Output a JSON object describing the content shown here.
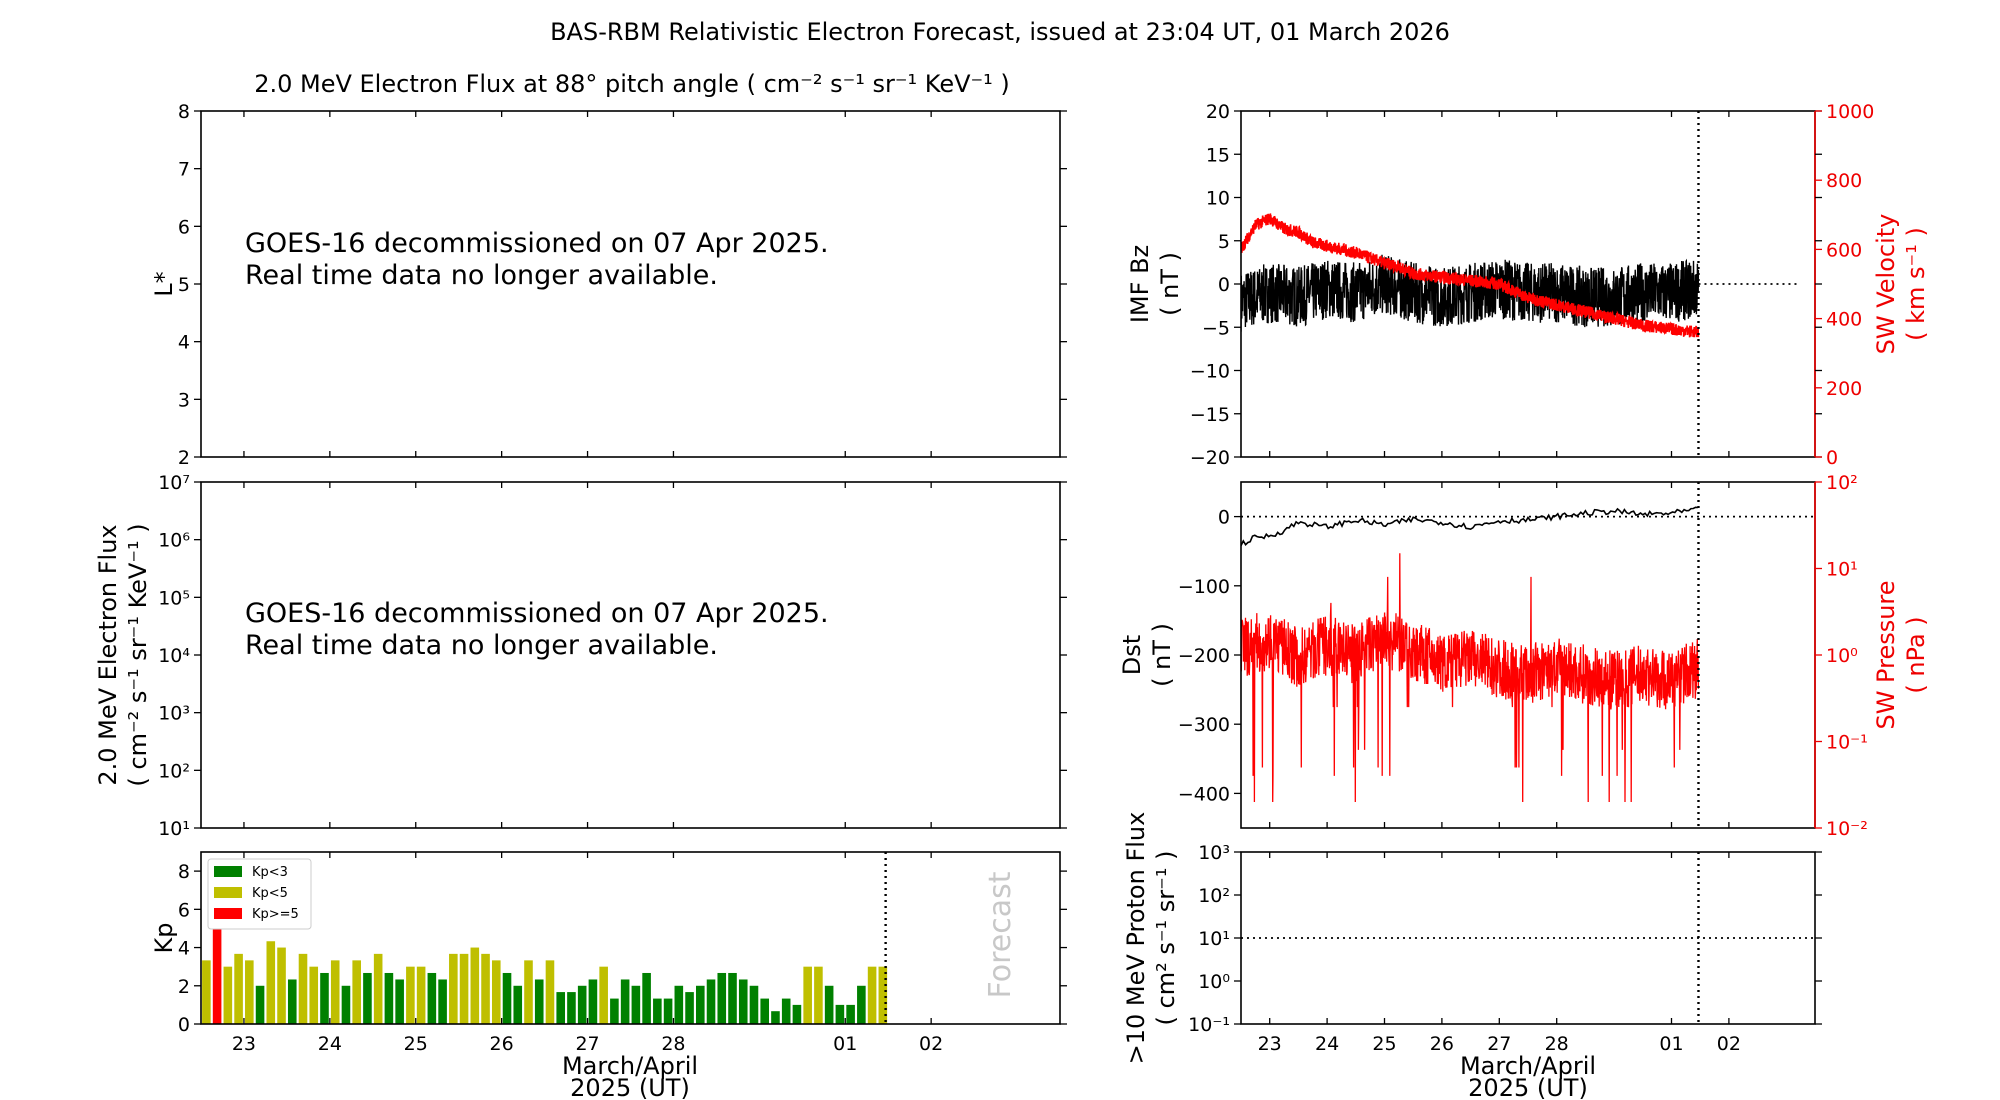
{
  "figure": {
    "title": "BAS-RBM Relativistic Electron Forecast, issued at 23:04 UT, 01 March 2026"
  },
  "chart_data": [
    {
      "id": "lstar_flux",
      "type": "heatmap",
      "title": "2.0 MeV Electron Flux at 88° pitch angle ( cm⁻² s⁻¹ sr⁻¹ KeV⁻¹ )",
      "ylabel": "L*",
      "ylim": [
        2,
        8
      ],
      "yticks": [
        "2",
        "3",
        "4",
        "5",
        "6",
        "7",
        "8"
      ],
      "notice": [
        "GOES-16 decommissioned on 07 Apr 2025.",
        "Real time data no longer available."
      ]
    },
    {
      "id": "electron_flux",
      "type": "line",
      "ylabel_lines": [
        "2.0 MeV Electron Flux",
        "( cm⁻² s⁻¹ sr⁻¹ KeV⁻¹ )"
      ],
      "yscale": "log",
      "ylim": [
        10,
        10000000
      ],
      "yticks": [
        "10¹",
        "10²",
        "10³",
        "10⁴",
        "10⁵",
        "10⁶",
        "10⁷"
      ],
      "notice": [
        "GOES-16 decommissioned on 07 Apr 2025.",
        "Real time data no longer available."
      ]
    },
    {
      "id": "kp",
      "type": "bar",
      "ylabel": "Kp",
      "ylim": [
        0,
        9
      ],
      "yticks": [
        "0",
        "2",
        "4",
        "6",
        "8"
      ],
      "xticks": [
        "23",
        "24",
        "25",
        "26",
        "27",
        "28",
        "01",
        "02"
      ],
      "xlabel_lines": [
        "March/April",
        "2025 (UT)"
      ],
      "x_start_day": 22.5,
      "bar_hours": 3,
      "now_day": 30.47,
      "forecast_label": "Forecast",
      "legend": {
        "placement": "top-left",
        "entries": [
          {
            "label": "Kp<3",
            "color": "#008000"
          },
          {
            "label": "Kp<5",
            "color": "#bfbf00"
          },
          {
            "label": "Kp>=5",
            "color": "#ff0000"
          }
        ]
      },
      "values": [
        3.33,
        5.0,
        3.0,
        3.67,
        3.33,
        2.0,
        4.33,
        4.0,
        2.33,
        3.67,
        3.0,
        2.67,
        3.33,
        2.0,
        3.33,
        2.67,
        3.67,
        2.67,
        2.33,
        3.0,
        3.0,
        2.67,
        2.33,
        3.67,
        3.67,
        4.0,
        3.67,
        3.33,
        2.67,
        2.0,
        3.33,
        2.33,
        3.33,
        1.67,
        1.67,
        2.0,
        2.33,
        3.0,
        1.33,
        2.33,
        2.0,
        2.67,
        1.33,
        1.33,
        2.0,
        1.67,
        2.0,
        2.33,
        2.67,
        2.67,
        2.33,
        2.0,
        1.33,
        0.67,
        1.33,
        1.0,
        3.0,
        3.0,
        2.0,
        1.0,
        1.0,
        2.0,
        3.0,
        3.0
      ]
    },
    {
      "id": "imf_sw",
      "type": "line",
      "ylabel_lines": [
        "IMF Bz",
        "( nT )"
      ],
      "ylim": [
        -20,
        20
      ],
      "yticks": [
        "−20",
        "−15",
        "−10",
        "−5",
        "0",
        "5",
        "10",
        "15",
        "20"
      ],
      "y2label_lines": [
        "SW Velocity",
        "( km s⁻¹ )"
      ],
      "y2lim": [
        0,
        1000
      ],
      "y2ticks": [
        "0",
        "200",
        "400",
        "600",
        "800",
        "1000"
      ],
      "series": [
        {
          "axis": "left",
          "color": "#000000",
          "x": [
            22.5,
            23.0,
            23.5,
            24.0,
            24.5,
            25.0,
            25.5,
            26.0,
            26.5,
            27.0,
            27.5,
            28.0,
            28.5,
            29.0,
            29.5,
            30.0,
            30.47
          ],
          "y": [
            -2.0,
            -1.0,
            -1.5,
            -0.5,
            -1.0,
            0.0,
            -1.0,
            -1.5,
            -1.0,
            -0.5,
            -1.0,
            -1.0,
            -1.5,
            -1.5,
            -1.0,
            -1.0,
            -0.5
          ],
          "spread": 3.5
        },
        {
          "axis": "right",
          "color": "#ff0000",
          "x": [
            22.5,
            22.75,
            23.0,
            23.25,
            23.5,
            23.75,
            24.0,
            24.5,
            25.0,
            25.25,
            25.5,
            26.0,
            26.5,
            27.0,
            27.5,
            28.0,
            28.5,
            29.0,
            29.5,
            30.0,
            30.47
          ],
          "y": [
            600,
            670,
            690,
            660,
            650,
            620,
            610,
            590,
            560,
            550,
            530,
            520,
            510,
            500,
            460,
            440,
            420,
            400,
            380,
            370,
            360
          ],
          "spread": 18
        }
      ],
      "zero_line_to_day": 31.5,
      "now_day": 30.47
    },
    {
      "id": "dst_pressure",
      "type": "line",
      "ylabel_lines": [
        "Dst",
        "( nT )"
      ],
      "ylim": [
        -450,
        50
      ],
      "yticks": [
        "−400",
        "−300",
        "−200",
        "−100",
        "0"
      ],
      "y2label_lines": [
        "SW Pressure",
        "( nPa )"
      ],
      "y2scale": "log",
      "y2lim": [
        0.01,
        100
      ],
      "y2ticks": [
        "10⁻²",
        "10⁻¹",
        "10⁰",
        "10¹",
        "10²"
      ],
      "series": [
        {
          "axis": "left",
          "color": "#000000",
          "x": [
            22.5,
            22.75,
            23.0,
            23.25,
            23.5,
            24.0,
            24.5,
            25.0,
            25.5,
            26.0,
            26.5,
            27.0,
            27.5,
            28.0,
            28.5,
            29.0,
            29.5,
            30.0,
            30.47
          ],
          "y": [
            -40,
            -30,
            -28,
            -20,
            -8,
            -15,
            -5,
            -12,
            -4,
            -8,
            -15,
            -6,
            -5,
            0,
            5,
            8,
            3,
            5,
            10
          ]
        },
        {
          "axis": "right",
          "color": "#ff0000",
          "x": [
            22.5,
            23.0,
            23.5,
            24.0,
            24.5,
            25.0,
            25.5,
            26.0,
            26.5,
            27.0,
            27.5,
            28.0,
            28.5,
            29.0,
            29.5,
            30.0,
            30.47
          ],
          "y": [
            1.2,
            1.5,
            0.9,
            1.3,
            1.0,
            1.6,
            1.1,
            0.8,
            0.9,
            0.7,
            0.6,
            0.7,
            0.6,
            0.5,
            0.6,
            0.5,
            0.7
          ],
          "spikes_down": [
            0.25,
            0.08,
            0.05,
            0.04,
            0.02
          ],
          "spikes_up": [
            4,
            8,
            15
          ]
        }
      ],
      "zero_line_to_day": 31.5,
      "now_day": 30.47
    },
    {
      "id": "proton_flux",
      "type": "line",
      "ylabel_lines": [
        ">10 MeV Proton Flux",
        "( cm² s⁻¹ sr⁻¹ )"
      ],
      "yscale": "log",
      "ylim": [
        0.1,
        1000
      ],
      "yticks": [
        "10⁻¹",
        "10⁰",
        "10¹",
        "10²",
        "10³"
      ],
      "xticks": [
        "23",
        "24",
        "25",
        "26",
        "27",
        "28",
        "01",
        "02"
      ],
      "xlabel_lines": [
        "March/April",
        "2025 (UT)"
      ],
      "threshold": 10,
      "now_day": 30.47
    }
  ]
}
